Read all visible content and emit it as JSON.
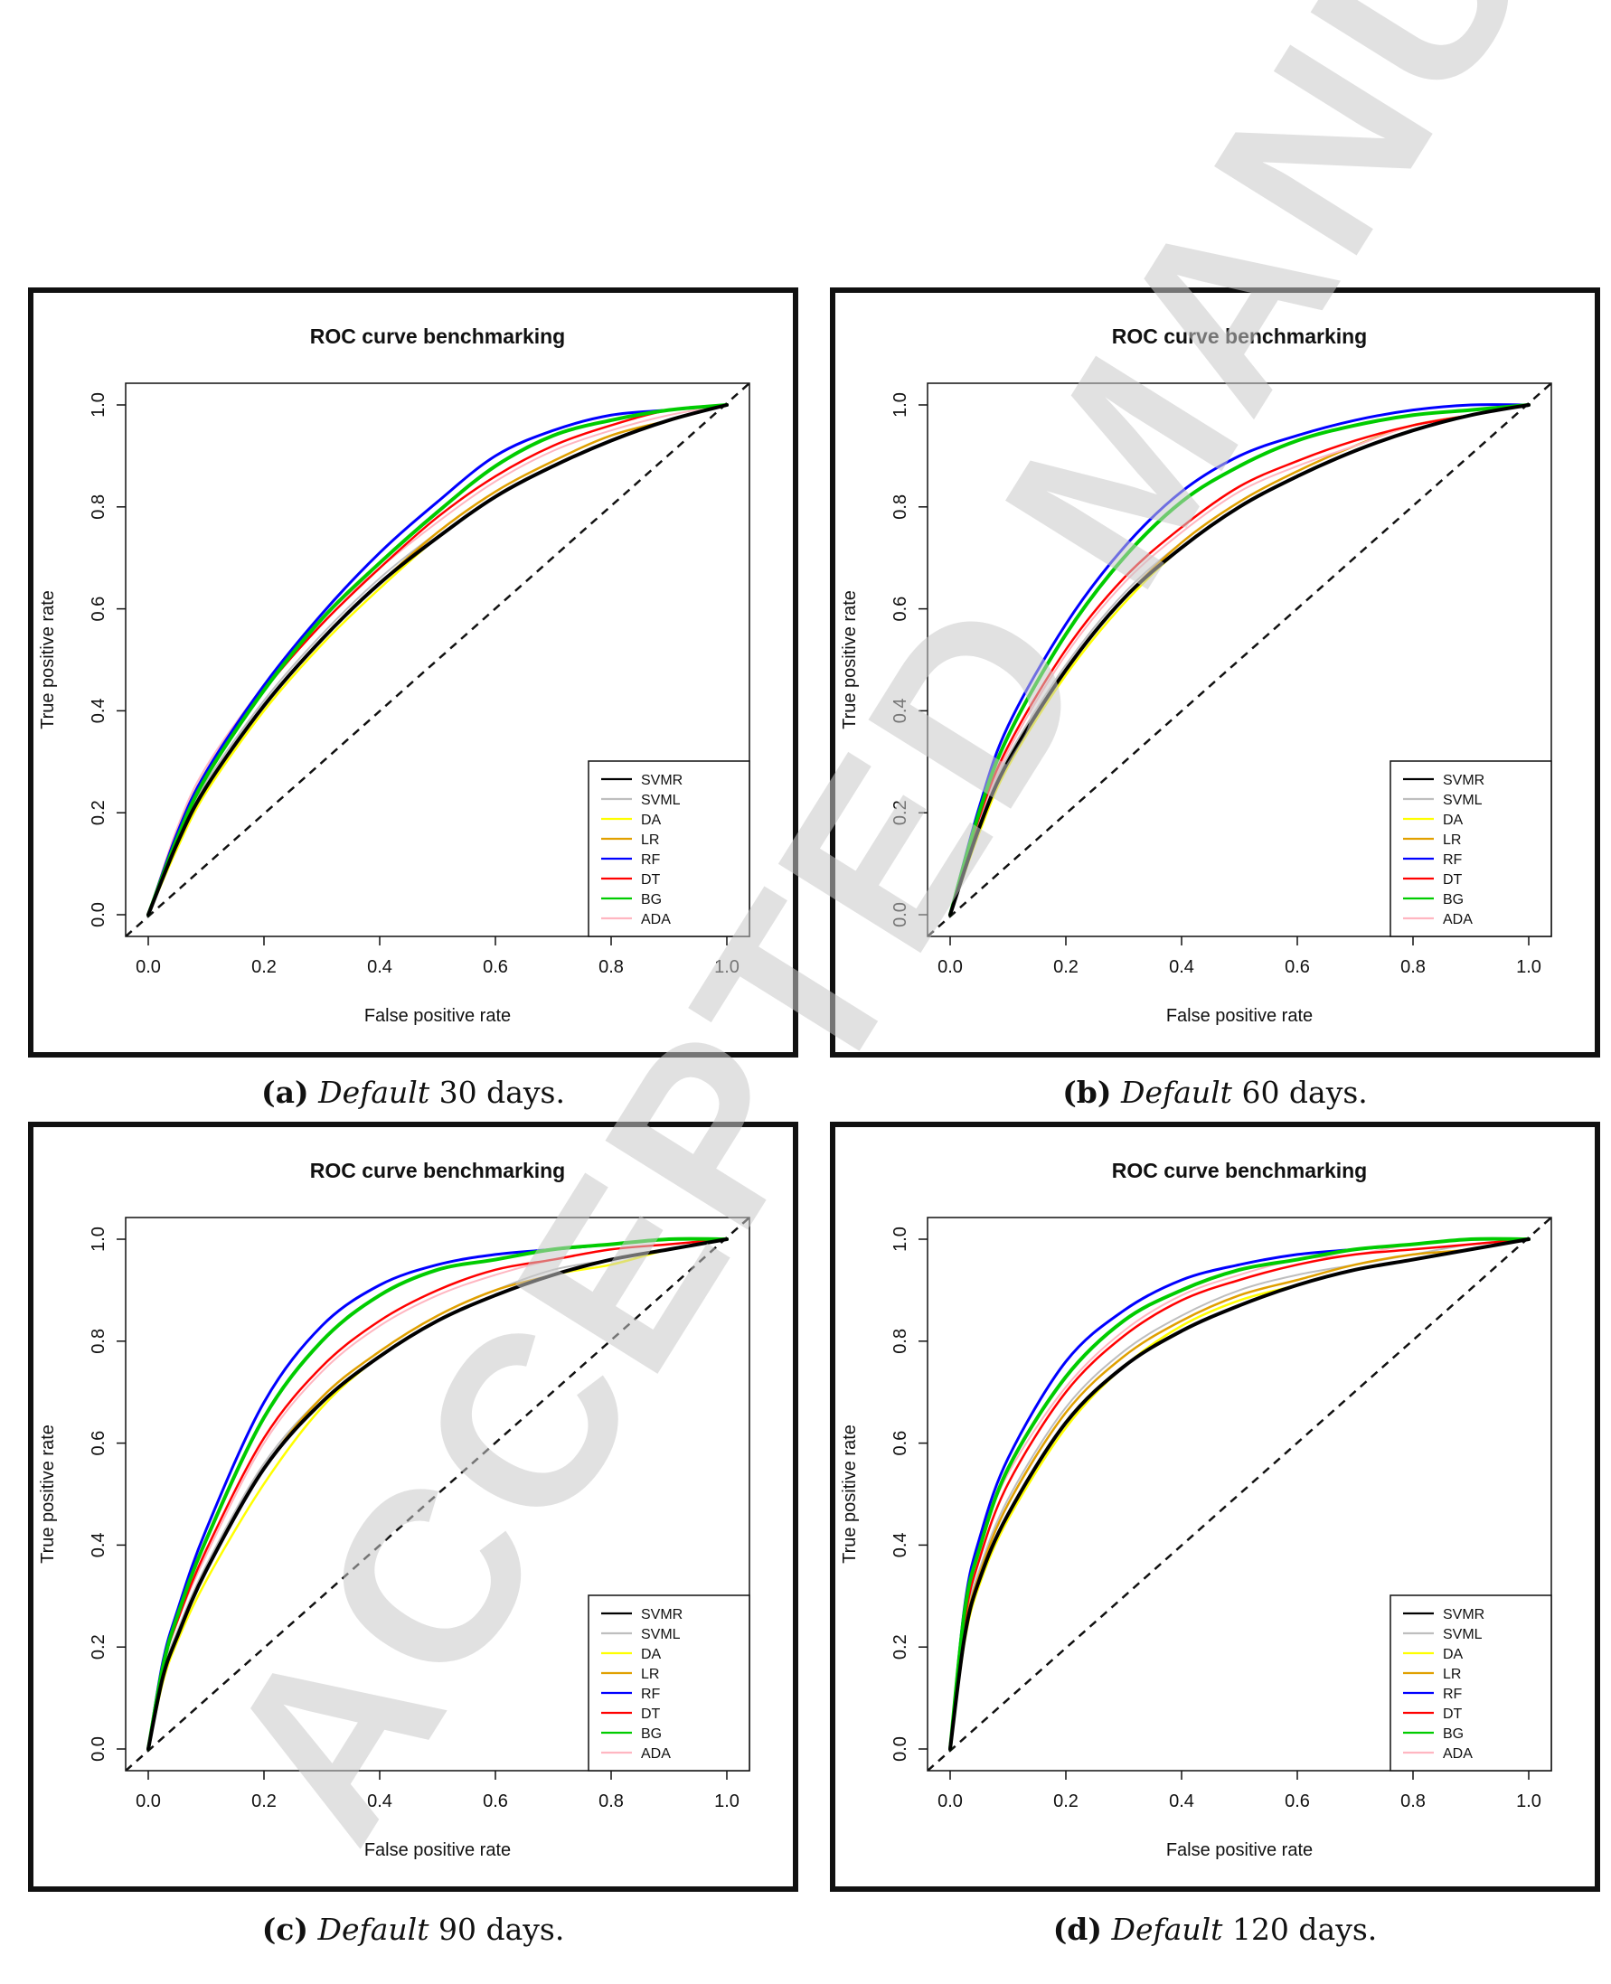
{
  "watermark": "ACCEPTED MANUSCRIPT",
  "legend_entries": [
    {
      "name": "SVMR",
      "color": "#000000"
    },
    {
      "name": "SVML",
      "color": "#bebebe"
    },
    {
      "name": "DA",
      "color": "#ffff00"
    },
    {
      "name": "LR",
      "color": "#e0a000"
    },
    {
      "name": "RF",
      "color": "#0000ff"
    },
    {
      "name": "DT",
      "color": "#ff0000"
    },
    {
      "name": "BG",
      "color": "#00cc00"
    },
    {
      "name": "ADA",
      "color": "#ffb6c1"
    }
  ],
  "captions": [
    {
      "label": "(a)",
      "emph": "Default",
      "rest": " 30 days."
    },
    {
      "label": "(b)",
      "emph": "Default",
      "rest": " 60 days."
    },
    {
      "label": "(c)",
      "emph": "Default",
      "rest": " 90 days."
    },
    {
      "label": "(d)",
      "emph": "Default",
      "rest": " 120 days."
    }
  ],
  "chart_data": [
    {
      "type": "line",
      "title": "ROC curve benchmarking",
      "xlabel": "False positive rate",
      "ylabel": "True positive rate",
      "xlim": [
        0,
        1
      ],
      "ylim": [
        0,
        1
      ],
      "xticks": [
        "0.0",
        "0.2",
        "0.4",
        "0.6",
        "0.8",
        "1.0"
      ],
      "yticks": [
        "0.0",
        "0.2",
        "0.4",
        "0.6",
        "0.8",
        "1.0"
      ],
      "legend_position": "bottom-right",
      "x": [
        0,
        0.05,
        0.1,
        0.2,
        0.3,
        0.4,
        0.5,
        0.6,
        0.7,
        0.8,
        0.9,
        1.0
      ],
      "series": [
        {
          "name": "SVMR",
          "values": [
            0,
            0.14,
            0.25,
            0.41,
            0.54,
            0.65,
            0.74,
            0.82,
            0.88,
            0.93,
            0.97,
            1.0
          ]
        },
        {
          "name": "SVML",
          "values": [
            0,
            0.15,
            0.26,
            0.42,
            0.55,
            0.66,
            0.75,
            0.83,
            0.89,
            0.94,
            0.97,
            1.0
          ]
        },
        {
          "name": "DA",
          "values": [
            0,
            0.13,
            0.24,
            0.4,
            0.53,
            0.64,
            0.74,
            0.82,
            0.88,
            0.93,
            0.97,
            1.0
          ]
        },
        {
          "name": "LR",
          "values": [
            0,
            0.14,
            0.25,
            0.41,
            0.54,
            0.65,
            0.75,
            0.83,
            0.89,
            0.94,
            0.97,
            1.0
          ]
        },
        {
          "name": "RF",
          "values": [
            0,
            0.16,
            0.28,
            0.45,
            0.59,
            0.71,
            0.81,
            0.9,
            0.95,
            0.98,
            0.99,
            1.0
          ]
        },
        {
          "name": "DT",
          "values": [
            0,
            0.16,
            0.28,
            0.44,
            0.57,
            0.68,
            0.78,
            0.86,
            0.92,
            0.96,
            0.99,
            1.0
          ]
        },
        {
          "name": "BG",
          "values": [
            0,
            0.15,
            0.27,
            0.44,
            0.58,
            0.69,
            0.79,
            0.88,
            0.94,
            0.97,
            0.99,
            1.0
          ]
        },
        {
          "name": "ADA",
          "values": [
            0,
            0.17,
            0.29,
            0.45,
            0.58,
            0.68,
            0.77,
            0.85,
            0.91,
            0.95,
            0.98,
            1.0
          ]
        }
      ]
    },
    {
      "type": "line",
      "title": "ROC curve benchmarking",
      "xlabel": "False positive rate",
      "ylabel": "True positive rate",
      "xlim": [
        0,
        1
      ],
      "ylim": [
        0,
        1
      ],
      "xticks": [
        "0.0",
        "0.2",
        "0.4",
        "0.6",
        "0.8",
        "1.0"
      ],
      "yticks": [
        "0.0",
        "0.2",
        "0.4",
        "0.6",
        "0.8",
        "1.0"
      ],
      "legend_position": "bottom-right",
      "x": [
        0,
        0.05,
        0.1,
        0.2,
        0.3,
        0.4,
        0.5,
        0.6,
        0.7,
        0.8,
        0.9,
        1.0
      ],
      "series": [
        {
          "name": "SVMR",
          "values": [
            0,
            0.17,
            0.3,
            0.48,
            0.62,
            0.72,
            0.8,
            0.86,
            0.91,
            0.95,
            0.98,
            1.0
          ]
        },
        {
          "name": "SVML",
          "values": [
            0,
            0.18,
            0.31,
            0.49,
            0.63,
            0.73,
            0.81,
            0.87,
            0.92,
            0.96,
            0.98,
            1.0
          ]
        },
        {
          "name": "DA",
          "values": [
            0,
            0.16,
            0.29,
            0.47,
            0.61,
            0.72,
            0.8,
            0.86,
            0.91,
            0.95,
            0.98,
            1.0
          ]
        },
        {
          "name": "LR",
          "values": [
            0,
            0.17,
            0.3,
            0.48,
            0.62,
            0.73,
            0.81,
            0.87,
            0.92,
            0.96,
            0.98,
            1.0
          ]
        },
        {
          "name": "RF",
          "values": [
            0,
            0.21,
            0.37,
            0.57,
            0.72,
            0.83,
            0.9,
            0.94,
            0.97,
            0.99,
            1.0,
            1.0
          ]
        },
        {
          "name": "DT",
          "values": [
            0,
            0.19,
            0.33,
            0.52,
            0.66,
            0.76,
            0.84,
            0.89,
            0.93,
            0.96,
            0.98,
            1.0
          ]
        },
        {
          "name": "BG",
          "values": [
            0,
            0.2,
            0.35,
            0.55,
            0.7,
            0.81,
            0.88,
            0.93,
            0.96,
            0.98,
            0.99,
            1.0
          ]
        },
        {
          "name": "ADA",
          "values": [
            0,
            0.18,
            0.32,
            0.51,
            0.65,
            0.75,
            0.83,
            0.88,
            0.92,
            0.96,
            0.98,
            1.0
          ]
        }
      ]
    },
    {
      "type": "line",
      "title": "ROC curve benchmarking",
      "xlabel": "False positive rate",
      "ylabel": "True positive rate",
      "xlim": [
        0,
        1
      ],
      "ylim": [
        0,
        1
      ],
      "xticks": [
        "0.0",
        "0.2",
        "0.4",
        "0.6",
        "0.8",
        "1.0"
      ],
      "yticks": [
        "0.0",
        "0.2",
        "0.4",
        "0.6",
        "0.8",
        "1.0"
      ],
      "legend_position": "bottom-right",
      "x": [
        0,
        0.025,
        0.05,
        0.1,
        0.2,
        0.3,
        0.4,
        0.5,
        0.6,
        0.7,
        0.8,
        0.9,
        1.0
      ],
      "series": [
        {
          "name": "SVMR",
          "values": [
            0,
            0.14,
            0.22,
            0.35,
            0.55,
            0.68,
            0.77,
            0.84,
            0.89,
            0.93,
            0.96,
            0.98,
            1.0
          ]
        },
        {
          "name": "SVML",
          "values": [
            0,
            0.15,
            0.23,
            0.36,
            0.56,
            0.69,
            0.78,
            0.85,
            0.9,
            0.94,
            0.96,
            0.98,
            1.0
          ]
        },
        {
          "name": "DA",
          "values": [
            0,
            0.13,
            0.21,
            0.33,
            0.52,
            0.67,
            0.77,
            0.84,
            0.89,
            0.93,
            0.95,
            0.98,
            1.0
          ]
        },
        {
          "name": "LR",
          "values": [
            0,
            0.14,
            0.22,
            0.35,
            0.55,
            0.69,
            0.78,
            0.85,
            0.9,
            0.93,
            0.96,
            0.98,
            1.0
          ]
        },
        {
          "name": "RF",
          "values": [
            0,
            0.17,
            0.27,
            0.43,
            0.68,
            0.83,
            0.91,
            0.95,
            0.97,
            0.98,
            0.99,
            1.0,
            1.0
          ]
        },
        {
          "name": "DT",
          "values": [
            0,
            0.16,
            0.25,
            0.39,
            0.61,
            0.75,
            0.84,
            0.9,
            0.94,
            0.96,
            0.98,
            0.99,
            1.0
          ]
        },
        {
          "name": "BG",
          "values": [
            0,
            0.16,
            0.26,
            0.41,
            0.65,
            0.8,
            0.89,
            0.94,
            0.96,
            0.98,
            0.99,
            1.0,
            1.0
          ]
        },
        {
          "name": "ADA",
          "values": [
            0,
            0.16,
            0.25,
            0.38,
            0.6,
            0.74,
            0.83,
            0.89,
            0.93,
            0.96,
            0.98,
            0.99,
            1.0
          ]
        }
      ]
    },
    {
      "type": "line",
      "title": "ROC curve benchmarking",
      "xlabel": "False positive rate",
      "ylabel": "True positive rate",
      "xlim": [
        0,
        1
      ],
      "ylim": [
        0,
        1
      ],
      "xticks": [
        "0.0",
        "0.2",
        "0.4",
        "0.6",
        "0.8",
        "1.0"
      ],
      "yticks": [
        "0.0",
        "0.2",
        "0.4",
        "0.6",
        "0.8",
        "1.0"
      ],
      "legend_position": "bottom-right",
      "x": [
        0,
        0.025,
        0.05,
        0.1,
        0.2,
        0.3,
        0.4,
        0.5,
        0.6,
        0.7,
        0.8,
        0.9,
        1.0
      ],
      "series": [
        {
          "name": "SVMR",
          "values": [
            0,
            0.22,
            0.33,
            0.46,
            0.64,
            0.75,
            0.82,
            0.87,
            0.91,
            0.94,
            0.96,
            0.98,
            1.0
          ]
        },
        {
          "name": "SVML",
          "values": [
            0,
            0.24,
            0.35,
            0.49,
            0.67,
            0.78,
            0.85,
            0.9,
            0.93,
            0.95,
            0.97,
            0.99,
            1.0
          ]
        },
        {
          "name": "DA",
          "values": [
            0,
            0.21,
            0.32,
            0.45,
            0.63,
            0.75,
            0.83,
            0.88,
            0.91,
            0.94,
            0.96,
            0.98,
            1.0
          ]
        },
        {
          "name": "LR",
          "values": [
            0,
            0.23,
            0.34,
            0.48,
            0.66,
            0.77,
            0.84,
            0.89,
            0.92,
            0.95,
            0.97,
            0.98,
            1.0
          ]
        },
        {
          "name": "RF",
          "values": [
            0,
            0.28,
            0.41,
            0.57,
            0.76,
            0.86,
            0.92,
            0.95,
            0.97,
            0.98,
            0.99,
            1.0,
            1.0
          ]
        },
        {
          "name": "DT",
          "values": [
            0,
            0.25,
            0.37,
            0.52,
            0.7,
            0.81,
            0.88,
            0.92,
            0.95,
            0.97,
            0.98,
            0.99,
            1.0
          ]
        },
        {
          "name": "BG",
          "values": [
            0,
            0.27,
            0.39,
            0.55,
            0.73,
            0.84,
            0.9,
            0.94,
            0.96,
            0.98,
            0.99,
            1.0,
            1.0
          ]
        },
        {
          "name": "ADA",
          "values": [
            0,
            0.28,
            0.4,
            0.54,
            0.71,
            0.82,
            0.89,
            0.93,
            0.96,
            0.97,
            0.99,
            1.0,
            1.0
          ]
        }
      ]
    }
  ]
}
